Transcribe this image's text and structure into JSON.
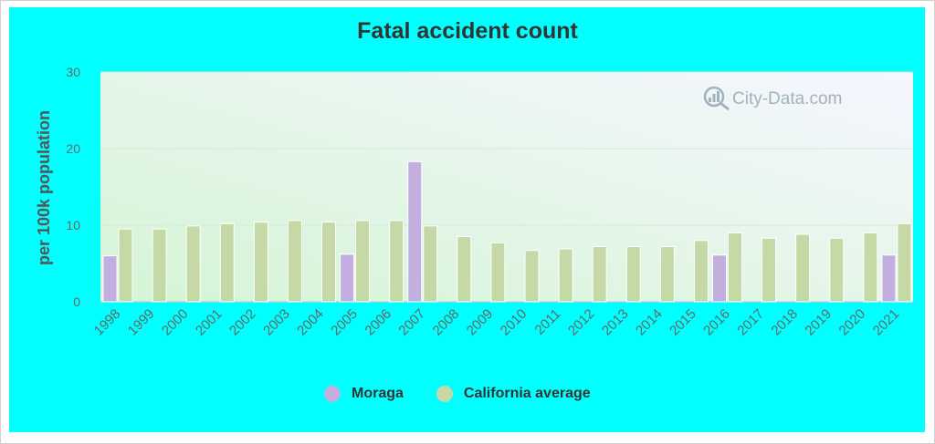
{
  "chart_data": {
    "type": "bar",
    "title": "Fatal accident count",
    "ylabel": "per 100k population",
    "xlabel": "",
    "ylim": [
      0,
      30
    ],
    "yticks": [
      0,
      10,
      20,
      30
    ],
    "grid": true,
    "legend_position": "bottom",
    "watermark": "City-Data.com",
    "categories": [
      "1998",
      "1999",
      "2000",
      "2001",
      "2002",
      "2003",
      "2004",
      "2005",
      "2006",
      "2007",
      "2008",
      "2009",
      "2010",
      "2011",
      "2012",
      "2013",
      "2014",
      "2015",
      "2016",
      "2017",
      "2018",
      "2019",
      "2020",
      "2021"
    ],
    "series": [
      {
        "name": "Moraga",
        "color": "#c3aee0",
        "values": [
          6.0,
          null,
          null,
          null,
          null,
          null,
          null,
          6.2,
          null,
          18.3,
          null,
          null,
          null,
          null,
          null,
          null,
          null,
          null,
          6.1,
          null,
          null,
          null,
          null,
          6.1
        ]
      },
      {
        "name": "California average",
        "color": "#c5d9a6",
        "values": [
          9.5,
          9.5,
          9.9,
          10.2,
          10.4,
          10.6,
          10.4,
          10.6,
          10.6,
          9.9,
          8.5,
          7.7,
          6.7,
          6.9,
          7.2,
          7.2,
          7.2,
          8.0,
          9.0,
          8.3,
          8.8,
          8.3,
          9.0,
          10.2
        ]
      }
    ]
  }
}
